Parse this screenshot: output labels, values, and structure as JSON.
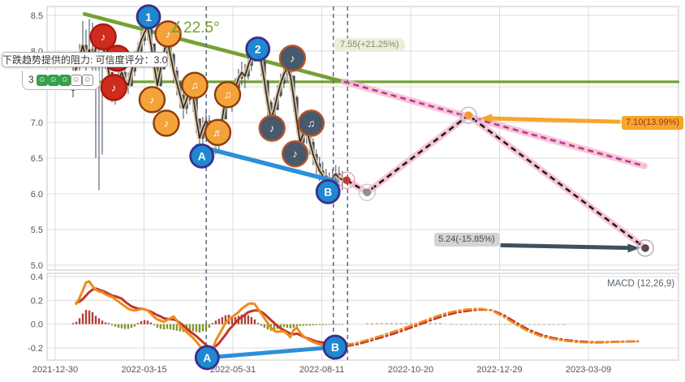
{
  "tooltip": {
    "text": "下跌趋势提供的阻力: 可信度评分：3.0",
    "rating_value": "3",
    "rating_filled": 3,
    "rating_total": 5
  },
  "angle_label": "∠22.5°",
  "badges": {
    "target_up": "7.55(+21.25%)",
    "target_mid": "7.10(13.99%)",
    "target_down": "5.24(-15.85%)"
  },
  "colors": {
    "trend_green": "#74a132",
    "ab_blue": "#2d8fd8",
    "marker_blue": "#1e88d0",
    "marker_blue_border": "#3b2e8c",
    "marker_orange": "#f3a33a",
    "marker_orange_border": "#8f3c10",
    "marker_red": "#cf2b1e",
    "marker_red_border": "#a81a10",
    "marker_dark": "#47596a",
    "marker_dark_border": "#b3562c",
    "dif_orange": "#f08b1e",
    "dea_red": "#c0392b",
    "hist_pos": "#a93226",
    "hist_neg": "#7d8c21",
    "magenta_dash": "#b03a9e",
    "black_dash": "#1c1c26",
    "pink_glow": "#f7b6c6",
    "arrow_orange": "#f5a62c",
    "arrow_dark": "#3f515f",
    "candle": "#3e4a56",
    "smooth_tan": "#e4c79e",
    "dashed_vertical": "#5f7285",
    "grid": "#dcdcdc",
    "axis_text": "#555555"
  },
  "chart_data": [
    {
      "type": "candlestick",
      "x_unit": "tick_index (0 = first x tick, ~52 trading days per tick)",
      "x_ticks": [
        "2021-12-30",
        "2022-03-15",
        "2022-05-31",
        "2022-08-11",
        "2022-10-20",
        "2022-12-29",
        "2023-03-09"
      ],
      "ylim": [
        5.0,
        8.5
      ],
      "y_ticks": [
        "8.5",
        "8.0",
        "7.5",
        "7.0",
        "6.5",
        "6.0",
        "5.5",
        "5.0"
      ],
      "candles": {
        "x0": 0.201,
        "dx": 0.0365,
        "first_open": 7.45,
        "format": "[close, high, low] — open taken as previous close",
        "values": [
          [
            7.55,
            7.95,
            7.35
          ],
          [
            7.78,
            7.92,
            7.5
          ],
          [
            7.92,
            8.1,
            7.6
          ],
          [
            8.08,
            8.42,
            7.85
          ],
          [
            7.88,
            8.3,
            7.7
          ],
          [
            8.02,
            8.45,
            7.8
          ],
          [
            7.78,
            8.4,
            7.6
          ],
          [
            8.05,
            8.25,
            6.5
          ],
          [
            8.18,
            8.35,
            6.05
          ],
          [
            8.1,
            8.28,
            6.55
          ],
          [
            7.92,
            8.15,
            7.75
          ],
          [
            7.7,
            7.95,
            7.5
          ],
          [
            7.45,
            7.7,
            7.28
          ],
          [
            7.38,
            7.6,
            7.25
          ],
          [
            7.6,
            7.75,
            7.35
          ],
          [
            7.7,
            7.85,
            7.5
          ],
          [
            7.58,
            7.78,
            7.45
          ],
          [
            7.52,
            7.7,
            7.4
          ],
          [
            7.72,
            7.85,
            7.5
          ],
          [
            7.88,
            8.0,
            7.65
          ],
          [
            8.0,
            8.12,
            7.82
          ],
          [
            8.15,
            8.28,
            7.95
          ],
          [
            8.26,
            8.38,
            8.08
          ],
          [
            8.34,
            8.45,
            8.15
          ],
          [
            8.1,
            8.35,
            7.9
          ],
          [
            7.8,
            8.05,
            7.6
          ],
          [
            7.52,
            7.78,
            7.38
          ],
          [
            7.75,
            7.9,
            7.5
          ],
          [
            7.98,
            8.12,
            7.75
          ],
          [
            8.15,
            8.28,
            7.95
          ],
          [
            7.95,
            8.2,
            7.78
          ],
          [
            7.72,
            7.98,
            7.55
          ],
          [
            7.55,
            7.78,
            7.38
          ],
          [
            7.38,
            7.58,
            7.2
          ],
          [
            7.2,
            7.42,
            7.05
          ],
          [
            7.32,
            7.48,
            7.12
          ],
          [
            7.48,
            7.6,
            7.25
          ],
          [
            7.38,
            7.55,
            7.15
          ],
          [
            7.05,
            7.35,
            6.85
          ],
          [
            6.78,
            7.05,
            6.65
          ],
          [
            6.92,
            7.08,
            6.7
          ],
          [
            7.02,
            7.15,
            6.82
          ],
          [
            6.95,
            7.1,
            6.78
          ],
          [
            6.82,
            7.0,
            6.68
          ],
          [
            6.68,
            6.88,
            6.55
          ],
          [
            6.8,
            6.95,
            6.6
          ],
          [
            7.05,
            7.18,
            6.82
          ],
          [
            7.35,
            7.48,
            7.1
          ],
          [
            7.42,
            7.55,
            7.22
          ],
          [
            7.3,
            7.5,
            7.15
          ],
          [
            7.48,
            7.62,
            7.28
          ],
          [
            7.62,
            7.75,
            7.42
          ],
          [
            7.7,
            7.85,
            7.52
          ],
          [
            7.65,
            7.82,
            7.48
          ],
          [
            7.8,
            7.92,
            7.6
          ],
          [
            7.92,
            8.05,
            7.72
          ],
          [
            8.02,
            8.12,
            7.85
          ],
          [
            8.05,
            8.15,
            7.88
          ],
          [
            7.85,
            8.08,
            7.65
          ],
          [
            7.58,
            7.88,
            7.4
          ],
          [
            7.28,
            7.6,
            7.1
          ],
          [
            7.05,
            7.32,
            6.95
          ],
          [
            7.18,
            7.35,
            7.0
          ],
          [
            7.38,
            7.52,
            7.18
          ],
          [
            7.55,
            7.68,
            7.35
          ],
          [
            7.68,
            7.8,
            7.48
          ],
          [
            7.76,
            7.88,
            7.58
          ],
          [
            7.65,
            7.82,
            7.45
          ],
          [
            7.35,
            7.65,
            7.15
          ],
          [
            7.02,
            7.38,
            6.85
          ],
          [
            6.72,
            7.05,
            6.58
          ],
          [
            6.85,
            7.0,
            6.62
          ],
          [
            6.9,
            7.02,
            6.7
          ],
          [
            6.72,
            6.95,
            6.55
          ],
          [
            6.55,
            6.78,
            6.4
          ],
          [
            6.42,
            6.62,
            6.28
          ],
          [
            6.32,
            6.52,
            6.18
          ],
          [
            6.25,
            6.45,
            6.12
          ],
          [
            6.18,
            6.35,
            6.05
          ],
          [
            6.15,
            6.3,
            6.02
          ],
          [
            6.22,
            6.35,
            6.08
          ],
          [
            6.28,
            6.4,
            6.12
          ],
          [
            6.22,
            6.38,
            6.08
          ],
          [
            6.2,
            6.32,
            6.05
          ]
        ]
      },
      "annotations": {
        "resistance_diagonal": {
          "from": [
            0.33,
            8.52
          ],
          "to": [
            3.25,
            7.57
          ]
        },
        "resistance_horizontal": {
          "price": 7.57,
          "from_idx": -0.09,
          "to_idx": 7.01
        },
        "ab_line": {
          "from": [
            1.6,
            6.67
          ],
          "to": [
            3.17,
            6.17
          ]
        },
        "vertical_dashed_idx": [
          1.7,
          3.13,
          3.29
        ],
        "projection_magenta": {
          "from": [
            3.25,
            7.57
          ],
          "to": [
            6.63,
            6.39
          ]
        },
        "projection_path": [
          [
            3.28,
            6.19
          ],
          [
            3.51,
            6.02
          ],
          [
            4.65,
            7.1
          ],
          [
            6.64,
            5.24
          ]
        ],
        "pivot_markers": [
          {
            "label": "1",
            "idx": 1.05,
            "price": 8.48
          },
          {
            "label": "2",
            "idx": 2.28,
            "price": 8.03
          },
          {
            "label": "A",
            "idx": 1.65,
            "price": 6.53
          },
          {
            "label": "B",
            "idx": 3.07,
            "price": 6.03
          }
        ],
        "note_markers": [
          {
            "style": "red",
            "note": "♪",
            "idx": 0.54,
            "price": 8.2
          },
          {
            "style": "red",
            "note": "♪",
            "idx": 0.7,
            "price": 7.9
          },
          {
            "style": "red",
            "note": "♪",
            "idx": 0.66,
            "price": 7.49
          },
          {
            "style": "orange",
            "note": "♪",
            "idx": 1.27,
            "price": 8.24
          },
          {
            "style": "orange",
            "note": "♪",
            "idx": 1.09,
            "price": 7.32
          },
          {
            "style": "orange",
            "note": "♪",
            "idx": 1.25,
            "price": 6.99
          },
          {
            "style": "orange",
            "note": "♫",
            "idx": 1.57,
            "price": 7.52
          },
          {
            "style": "orange",
            "note": "♬",
            "idx": 1.83,
            "price": 6.86
          },
          {
            "style": "orange",
            "note": "♫",
            "idx": 1.94,
            "price": 7.39
          },
          {
            "style": "dark",
            "note": "♪",
            "idx": 2.67,
            "price": 7.9
          },
          {
            "style": "dark",
            "note": "♪",
            "idx": 2.44,
            "price": 6.92
          },
          {
            "style": "dark",
            "note": "♫",
            "idx": 2.88,
            "price": 6.99
          },
          {
            "style": "dark",
            "note": "♪",
            "idx": 2.7,
            "price": 6.56
          }
        ],
        "dots": [
          {
            "style": "red",
            "idx": 3.28,
            "price": 6.19
          },
          {
            "style": "gray",
            "idx": 3.51,
            "price": 6.02
          },
          {
            "style": "orange",
            "idx": 4.65,
            "price": 7.1
          },
          {
            "style": "dark",
            "idx": 6.64,
            "price": 5.24
          }
        ],
        "arrows": [
          {
            "style": "orange",
            "tail": [
              6.36,
              7.01
            ],
            "head": [
              4.78,
              7.06
            ]
          },
          {
            "style": "dark",
            "tail": [
              5.01,
              5.28
            ],
            "head": [
              6.58,
              5.24
            ]
          }
        ]
      }
    },
    {
      "type": "line",
      "label": "MACD (12,26,9)",
      "ylim": [
        -0.3,
        0.45
      ],
      "y_ticks": [
        "0.4",
        "0.2",
        "0.0",
        "-0.2"
      ],
      "hist": {
        "x0": 0.201,
        "dx": 0.0365,
        "values": [
          0.01,
          0.02,
          0.05,
          0.09,
          0.12,
          0.115,
          0.1,
          0.07,
          0.05,
          0.03,
          0.015,
          0.01,
          -0.01,
          -0.02,
          -0.03,
          -0.035,
          -0.04,
          -0.04,
          -0.03,
          -0.02,
          0.01,
          0.025,
          0.035,
          0.03,
          0.015,
          -0.01,
          -0.03,
          -0.04,
          -0.045,
          -0.04,
          -0.045,
          -0.05,
          -0.055,
          -0.06,
          -0.065,
          -0.06,
          -0.055,
          -0.06,
          -0.065,
          -0.07,
          -0.06,
          -0.05,
          -0.03,
          0.01,
          0.03,
          0.045,
          0.06,
          0.075,
          0.08,
          0.07,
          0.06,
          0.07,
          0.08,
          0.085,
          0.075,
          0.06,
          0.04,
          0.01,
          -0.015,
          -0.03,
          -0.045,
          -0.055,
          -0.05,
          -0.04,
          -0.03,
          -0.025,
          -0.03,
          -0.035,
          -0.03,
          -0.02,
          -0.015,
          -0.012,
          -0.01,
          -0.012,
          -0.01,
          -0.008,
          -0.006,
          -0.008,
          -0.006,
          -0.005,
          -0.004,
          -0.005,
          -0.004,
          -0.003
        ]
      },
      "hist_projection": [
        {
          "from_idx": 3.51,
          "step": 0.0548,
          "count": 16,
          "value": 0.01
        },
        {
          "from_idx": 4.46,
          "step": 0.0548,
          "count": 24,
          "value": -0.008
        }
      ],
      "dif": {
        "x0": 0.237,
        "dx": 0.0365,
        "values": [
          0.17,
          0.22,
          0.28,
          0.35,
          0.36,
          0.32,
          0.29,
          0.275,
          0.27,
          0.25,
          0.24,
          0.23,
          0.21,
          0.19,
          0.17,
          0.15,
          0.13,
          0.12,
          0.115,
          0.12,
          0.13,
          0.125,
          0.115,
          0.09,
          0.06,
          0.04,
          0.03,
          0.02,
          0.035,
          0.05,
          0.065,
          0.03,
          -0.01,
          -0.04,
          -0.065,
          -0.09,
          -0.115,
          -0.145,
          -0.18,
          -0.21,
          -0.24,
          -0.245,
          -0.215,
          -0.14,
          -0.09,
          -0.04,
          0.01,
          0.04,
          0.06,
          0.08,
          0.1,
          0.13,
          0.15,
          0.17,
          0.175,
          0.17,
          0.13,
          0.09,
          0.05,
          0.01,
          -0.03,
          -0.055,
          -0.065,
          -0.06,
          -0.06,
          -0.08,
          -0.11,
          -0.05,
          -0.03,
          -0.07,
          -0.1,
          -0.12,
          -0.135,
          -0.15,
          -0.16,
          -0.17,
          -0.175,
          -0.18,
          -0.185,
          -0.19,
          -0.19,
          -0.185,
          -0.18
        ]
      },
      "dea": {
        "x0": 0.237,
        "dx": 0.0365,
        "values": [
          0.18,
          0.19,
          0.21,
          0.24,
          0.27,
          0.29,
          0.3,
          0.29,
          0.28,
          0.27,
          0.255,
          0.24,
          0.235,
          0.225,
          0.215,
          0.19,
          0.17,
          0.15,
          0.14,
          0.13,
          0.13,
          0.125,
          0.115,
          0.105,
          0.09,
          0.075,
          0.065,
          0.05,
          0.045,
          0.04,
          0.04,
          0.03,
          0.01,
          -0.01,
          -0.035,
          -0.06,
          -0.08,
          -0.1,
          -0.125,
          -0.15,
          -0.175,
          -0.195,
          -0.2,
          -0.185,
          -0.16,
          -0.125,
          -0.09,
          -0.05,
          -0.02,
          0.01,
          0.04,
          0.06,
          0.08,
          0.1,
          0.11,
          0.115,
          0.115,
          0.105,
          0.085,
          0.06,
          0.035,
          0.01,
          -0.015,
          -0.035,
          -0.05,
          -0.065,
          -0.08,
          -0.085,
          -0.08,
          -0.09,
          -0.105,
          -0.115,
          -0.125,
          -0.135,
          -0.145,
          -0.15,
          -0.155,
          -0.16,
          -0.165,
          -0.17,
          -0.175,
          -0.175,
          -0.17
        ]
      },
      "dif_projection": {
        "x0": 3.27,
        "dx": 0.137,
        "values": [
          -0.175,
          -0.155,
          -0.125,
          -0.095,
          -0.06,
          -0.025,
          0.01,
          0.05,
          0.085,
          0.11,
          0.125,
          0.13,
          0.115,
          0.06,
          -0.005,
          -0.06,
          -0.1,
          -0.125,
          -0.14,
          -0.15,
          -0.155,
          -0.155,
          -0.15,
          -0.148,
          -0.145
        ]
      },
      "dea_projection": {
        "x0": 3.27,
        "dx": 0.137,
        "values": [
          -0.185,
          -0.168,
          -0.14,
          -0.11,
          -0.078,
          -0.042,
          -0.005,
          0.033,
          0.068,
          0.095,
          0.112,
          0.122,
          0.118,
          0.075,
          0.012,
          -0.045,
          -0.088,
          -0.115,
          -0.132,
          -0.143,
          -0.15,
          -0.151,
          -0.148,
          -0.146,
          -0.144
        ]
      },
      "ab_line": {
        "from": [
          1.71,
          -0.281
        ],
        "to": [
          3.15,
          -0.193
        ]
      },
      "pivot_markers": [
        {
          "label": "A",
          "idx": 1.71,
          "value": -0.281
        },
        {
          "label": "B",
          "idx": 3.15,
          "value": -0.193
        }
      ]
    }
  ]
}
